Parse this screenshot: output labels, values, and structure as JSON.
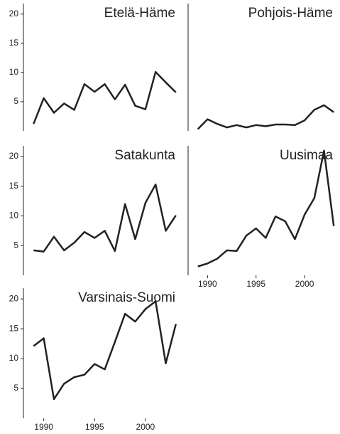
{
  "chart_data": [
    {
      "type": "line",
      "title": "Etelä-Häme",
      "color": "#222222",
      "x": [
        1989,
        1990,
        1991,
        1992,
        1993,
        1994,
        1995,
        1996,
        1997,
        1998,
        1999,
        2000,
        2001,
        2002,
        2003
      ],
      "values": [
        1.2,
        5.6,
        3.1,
        4.7,
        3.6,
        8.0,
        6.7,
        8.0,
        5.4,
        7.9,
        4.3,
        3.7,
        10.1,
        8.3,
        6.6
      ],
      "xlim": [
        1988,
        2003.5
      ],
      "ylim": [
        0,
        21.8
      ],
      "yticks": [
        5,
        10,
        15,
        20
      ]
    },
    {
      "type": "line",
      "title": "Pohjois-Häme",
      "color": "#222222",
      "x": [
        1989,
        1990,
        1991,
        1992,
        1993,
        1994,
        1995,
        1996,
        1997,
        1998,
        1999,
        2000,
        2001,
        2002,
        2003
      ],
      "values": [
        0.3,
        2.0,
        1.2,
        0.6,
        1.0,
        0.6,
        1.0,
        0.8,
        1.1,
        1.1,
        1.0,
        1.8,
        3.6,
        4.4,
        3.2
      ],
      "xlim": [
        1988,
        2003.5
      ],
      "ylim": [
        0,
        21.8
      ]
    },
    {
      "type": "line",
      "title": "Satakunta",
      "color": "#222222",
      "x": [
        1989,
        1990,
        1991,
        1992,
        1993,
        1994,
        1995,
        1996,
        1997,
        1998,
        1999,
        2000,
        2001,
        2002,
        2003
      ],
      "values": [
        4.2,
        4.0,
        6.5,
        4.2,
        5.5,
        7.3,
        6.3,
        7.5,
        4.1,
        12.0,
        6.1,
        12.2,
        15.3,
        7.5,
        10.1
      ],
      "xlim": [
        1988,
        2003.5
      ],
      "ylim": [
        0,
        21.8
      ],
      "yticks": [
        5,
        10,
        15,
        20
      ]
    },
    {
      "type": "line",
      "title": "Uusimaa",
      "color": "#222222",
      "x": [
        1989,
        1990,
        1991,
        1992,
        1993,
        1994,
        1995,
        1996,
        1997,
        1998,
        1999,
        2000,
        2001,
        2002,
        2003
      ],
      "values": [
        1.5,
        2.0,
        2.8,
        4.2,
        4.1,
        6.7,
        7.9,
        6.3,
        9.9,
        9.1,
        6.1,
        10.2,
        13.0,
        21.0,
        8.3
      ],
      "xlim": [
        1988,
        2003.5
      ],
      "ylim": [
        0,
        21.8
      ],
      "xticks": [
        1990,
        1995,
        2000
      ]
    },
    {
      "type": "line",
      "title": "Varsinais-Suomi",
      "color": "#222222",
      "x": [
        1989,
        1990,
        1991,
        1992,
        1993,
        1994,
        1995,
        1996,
        1997,
        1998,
        1999,
        2000,
        2001,
        2002,
        2003
      ],
      "values": [
        12.1,
        13.4,
        3.2,
        5.8,
        6.9,
        7.3,
        9.1,
        8.2,
        12.8,
        17.5,
        16.2,
        18.3,
        19.6,
        9.2,
        15.8
      ],
      "xlim": [
        1988,
        2003.5
      ],
      "ylim": [
        0,
        21.8
      ],
      "yticks": [
        5,
        10,
        15,
        20
      ],
      "xticks": [
        1990,
        1995,
        2000
      ]
    }
  ]
}
